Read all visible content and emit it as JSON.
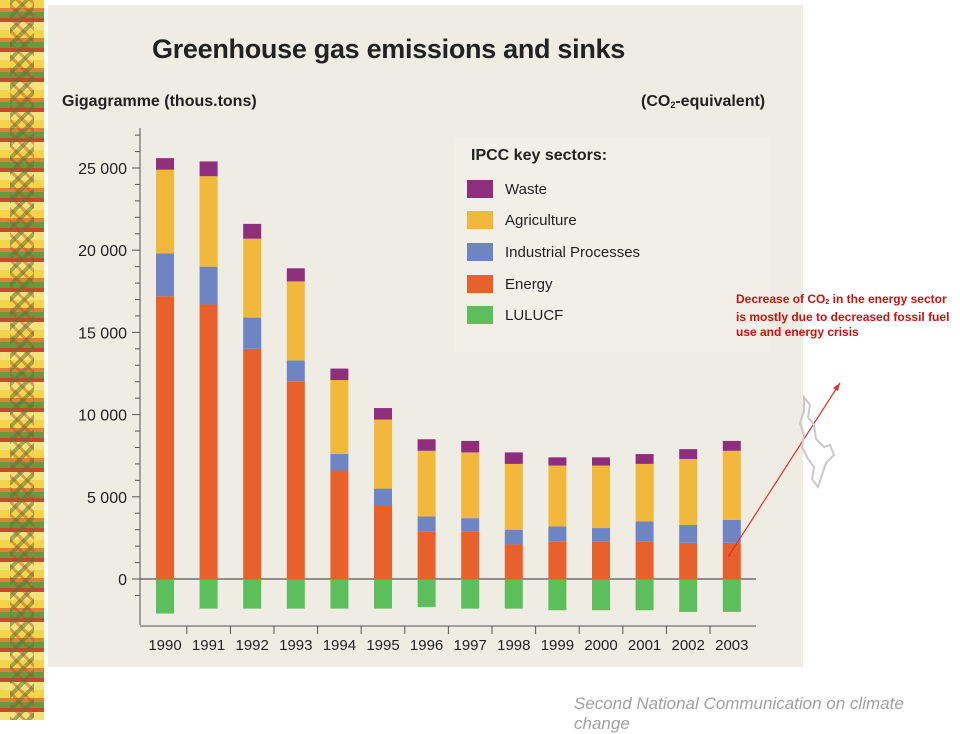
{
  "header": {
    "title": "Greenhouse gas emissions and sinks",
    "ylabel": "Gigagramme (thous.tons)",
    "unit_prefix": "(CO",
    "unit_sub": "2",
    "unit_suffix": "-equivalent)"
  },
  "legend": {
    "title": "IPCC key sectors:",
    "items": [
      {
        "label": "Waste",
        "color": "#8e2f7d"
      },
      {
        "label": "Agriculture",
        "color": "#f2b83b"
      },
      {
        "label": "Industrial Processes",
        "color": "#6f84c2"
      },
      {
        "label": "Energy",
        "color": "#e8612c"
      },
      {
        "label": "LULUCF",
        "color": "#5cbf5c"
      }
    ]
  },
  "annotation": {
    "part1": "Decrease of CO",
    "sub": "2",
    "part2": " in the energy sector is mostly due to decreased fossil fuel use and energy crisis"
  },
  "footer": {
    "text": "Second National Communication on climate change"
  },
  "chart_data": {
    "type": "bar",
    "stacked": true,
    "title": "Greenhouse gas emissions and sinks",
    "ylabel": "Gigagramme (thous.tons)",
    "ylim": [
      -2200,
      27000
    ],
    "yticks": [
      0,
      5000,
      10000,
      15000,
      20000,
      25000
    ],
    "ytick_labels": [
      "0",
      "5 000",
      "10 000",
      "15 000",
      "20 000",
      "25 000"
    ],
    "grid": false,
    "legend_position": "top-right",
    "categories": [
      "1990",
      "1991",
      "1992",
      "1993",
      "1994",
      "1995",
      "1996",
      "1997",
      "1998",
      "1999",
      "2000",
      "2001",
      "2002",
      "2003"
    ],
    "series": [
      {
        "name": "Energy",
        "color": "#e8612c",
        "values": [
          17200,
          16700,
          14000,
          12000,
          6600,
          4500,
          2900,
          2900,
          2100,
          2300,
          2300,
          2300,
          2200,
          2200
        ]
      },
      {
        "name": "Industrial Processes",
        "color": "#6f84c2",
        "values": [
          2600,
          2300,
          1900,
          1300,
          1000,
          1000,
          900,
          800,
          900,
          900,
          800,
          1200,
          1100,
          1400
        ]
      },
      {
        "name": "Agriculture",
        "color": "#f2b83b",
        "values": [
          5100,
          5500,
          4800,
          4800,
          4500,
          4200,
          4000,
          4000,
          4000,
          3700,
          3800,
          3500,
          4000,
          4200
        ]
      },
      {
        "name": "Waste",
        "color": "#8e2f7d",
        "values": [
          700,
          900,
          900,
          800,
          700,
          700,
          700,
          700,
          700,
          500,
          500,
          600,
          600,
          600
        ]
      },
      {
        "name": "LULUCF",
        "color": "#5cbf5c",
        "values": [
          -2100,
          -1800,
          -1800,
          -1800,
          -1800,
          -1800,
          -1700,
          -1800,
          -1800,
          -1900,
          -1900,
          -1900,
          -2000,
          -2000
        ]
      }
    ]
  }
}
